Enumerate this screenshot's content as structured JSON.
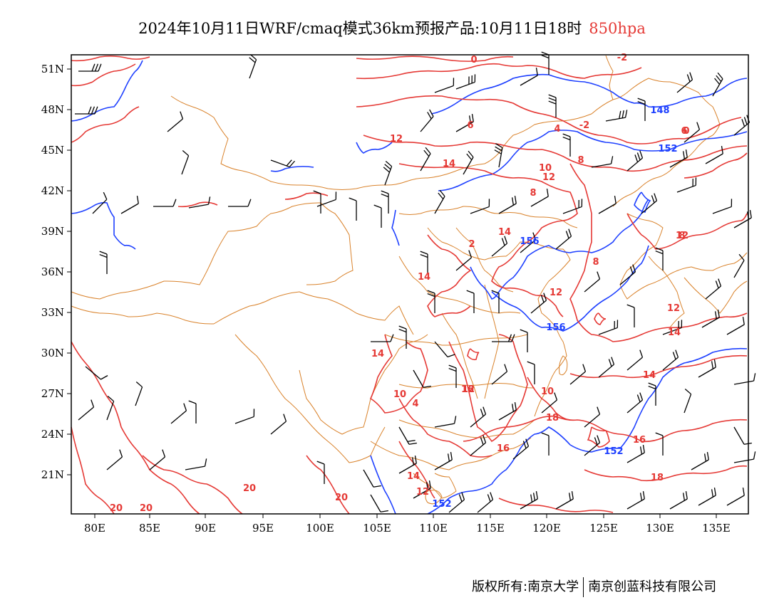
{
  "title": {
    "main": "2024年10月11日WRF/cmaq模式36km预报产品:10月11日18时",
    "level": "850hpa"
  },
  "colors": {
    "temperature": "#e53935",
    "geopotential": "#1e40ff",
    "border": "#d9822b",
    "wind_barb": "#000000"
  },
  "axes": {
    "lat_labels": [
      "51N",
      "48N",
      "45N",
      "42N",
      "39N",
      "36N",
      "33N",
      "30N",
      "27N",
      "24N",
      "21N"
    ],
    "lon_labels": [
      "80E",
      "85E",
      "90E",
      "95E",
      "100E",
      "105E",
      "110E",
      "115E",
      "120E",
      "125E",
      "130E",
      "135E"
    ]
  },
  "temperature_labels": [
    "0",
    "-2",
    "-2",
    "0",
    "4",
    "6",
    "8",
    "8",
    "10",
    "12",
    "12",
    "12",
    "14",
    "14",
    "14",
    "14",
    "14",
    "10",
    "10",
    "12",
    "8",
    "12",
    "12",
    "16",
    "14",
    "18",
    "16",
    "16",
    "20",
    "20",
    "20",
    "20",
    "18",
    "14",
    "12",
    "8",
    "4",
    "2",
    "6"
  ],
  "height_labels": [
    "148",
    "152",
    "156",
    "156",
    "152",
    "152"
  ],
  "copyright": {
    "owner1": "版权所有:南京大学",
    "owner2": "南京创蓝科技有限公司"
  }
}
